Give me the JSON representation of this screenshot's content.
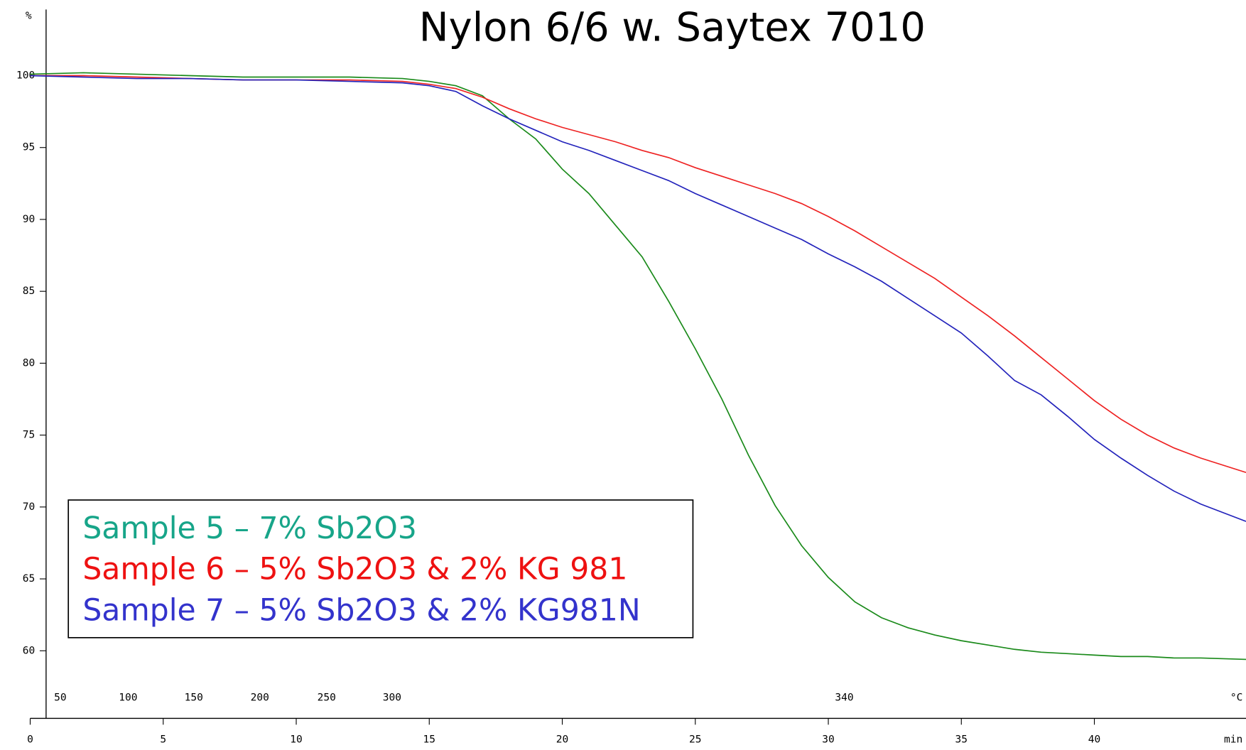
{
  "chart_data": {
    "type": "line",
    "title": "Nylon 6/6 w. Saytex 7010",
    "y_axis_label": "%",
    "x_axis_label": "min",
    "temperature_axis_label": "°C",
    "x": [
      0,
      2,
      4,
      6,
      8,
      10,
      12,
      14,
      15,
      16,
      17,
      18,
      19,
      20,
      21,
      22,
      23,
      24,
      25,
      26,
      27,
      28,
      29,
      30,
      31,
      32,
      33,
      34,
      35,
      36,
      37,
      38,
      39,
      40,
      41,
      42,
      43,
      44,
      45.7
    ],
    "series": [
      {
        "name": "Sample 5 – 7% Sb2O3",
        "color": "#1a8a1a",
        "label_color": "#17a589",
        "values": [
          100.1,
          100.2,
          100.1,
          100.0,
          99.9,
          99.9,
          99.9,
          99.8,
          99.6,
          99.3,
          98.6,
          97.0,
          95.6,
          93.5,
          91.8,
          89.6,
          87.4,
          84.3,
          81.0,
          77.5,
          73.6,
          70.1,
          67.3,
          65.1,
          63.4,
          62.3,
          61.6,
          61.1,
          60.7,
          60.4,
          60.1,
          59.9,
          59.8,
          59.7,
          59.6,
          59.6,
          59.5,
          59.5,
          59.4
        ]
      },
      {
        "name": "Sample 6 – 5% Sb2O3 & 2% KG 981",
        "color": "#ee2222",
        "label_color": "#ee1111",
        "values": [
          100.0,
          100.0,
          99.9,
          99.8,
          99.7,
          99.7,
          99.7,
          99.6,
          99.4,
          99.1,
          98.5,
          97.7,
          97.0,
          96.4,
          95.9,
          95.4,
          94.8,
          94.3,
          93.6,
          93.0,
          92.4,
          91.8,
          91.1,
          90.2,
          89.2,
          88.1,
          87.0,
          85.9,
          84.6,
          83.3,
          81.9,
          80.4,
          78.9,
          77.4,
          76.1,
          75.0,
          74.1,
          73.4,
          72.4
        ]
      },
      {
        "name": "Sample 7 – 5% Sb2O3 & 2% KG981N",
        "color": "#2222bb",
        "label_color": "#3333cc",
        "values": [
          100.0,
          99.9,
          99.8,
          99.8,
          99.7,
          99.7,
          99.6,
          99.5,
          99.3,
          98.9,
          97.9,
          97.0,
          96.2,
          95.4,
          94.8,
          94.1,
          93.4,
          92.7,
          91.8,
          91.0,
          90.2,
          89.4,
          88.6,
          87.6,
          86.7,
          85.7,
          84.5,
          83.3,
          82.1,
          80.5,
          78.8,
          77.8,
          76.3,
          74.7,
          73.4,
          72.2,
          71.1,
          70.2,
          69.0
        ]
      }
    ],
    "xlim": [
      0,
      45.7
    ],
    "ylim": [
      55.3,
      104.6
    ],
    "xticks": [
      0,
      5,
      10,
      15,
      20,
      25,
      30,
      35,
      40
    ],
    "yticks": [
      60,
      65,
      70,
      75,
      80,
      85,
      90,
      95,
      100
    ],
    "temperature_ticks": {
      "x": [
        1.13,
        3.68,
        6.15,
        8.63,
        11.14,
        13.6,
        30.6
      ],
      "labels": [
        50,
        100,
        150,
        200,
        250,
        300,
        340
      ]
    },
    "grid": false
  }
}
